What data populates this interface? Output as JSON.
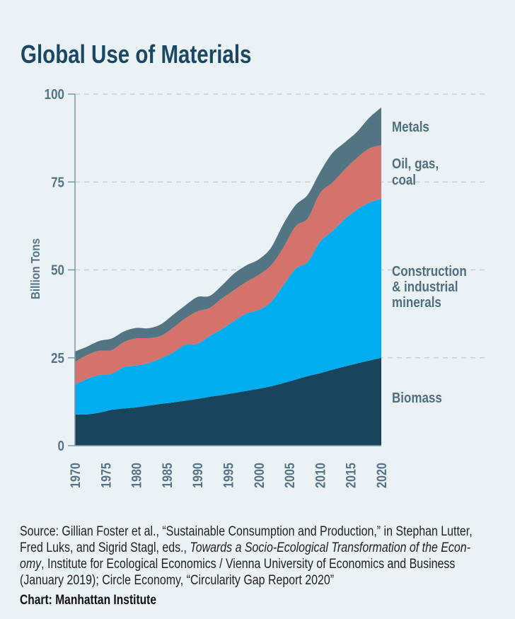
{
  "title": "Global Use of Materials",
  "chart_data": {
    "type": "area",
    "stacked": true,
    "title": "Global Use of Materials",
    "xlabel": "",
    "ylabel": "Billion Tons",
    "ylim": [
      0,
      100
    ],
    "xlim": [
      1970,
      2020
    ],
    "yticks": [
      "0",
      "25",
      "50",
      "75",
      "100"
    ],
    "xticks": [
      "1970",
      "1975",
      "1980",
      "1985",
      "1990",
      "1995",
      "2000",
      "2005",
      "2010",
      "2015",
      "2020"
    ],
    "grid": "horizontal dashed",
    "legend": "right, labels beside areas",
    "x": [
      1970,
      1972,
      1974,
      1976,
      1978,
      1980,
      1982,
      1984,
      1986,
      1988,
      1990,
      1992,
      1994,
      1996,
      1998,
      2000,
      2002,
      2004,
      2006,
      2008,
      2010,
      2012,
      2014,
      2016,
      2018,
      2020
    ],
    "series": [
      {
        "name": "Biomass",
        "label_lines": [
          "Biomass"
        ],
        "color": "#19455c",
        "values": [
          8.9,
          8.9,
          9.4,
          10.2,
          10.6,
          10.9,
          11.4,
          11.9,
          12.3,
          12.8,
          13.3,
          13.9,
          14.4,
          15.0,
          15.6,
          16.2,
          16.9,
          17.8,
          18.8,
          19.8,
          20.6,
          21.6,
          22.5,
          23.4,
          24.2,
          25.0
        ]
      },
      {
        "name": "Construction & industrial minerals",
        "label_lines": [
          "Construction",
          "& industrial",
          "minerals"
        ],
        "color": "#00aeef",
        "values": [
          8.5,
          10.1,
          10.7,
          10.3,
          11.7,
          11.9,
          12.1,
          12.9,
          14.2,
          15.9,
          15.7,
          17.3,
          18.8,
          20.5,
          22.0,
          22.4,
          24.0,
          27.8,
          31.5,
          32.5,
          37.4,
          39.4,
          41.9,
          43.7,
          44.9,
          45.3
        ]
      },
      {
        "name": "Oil, gas, coal",
        "label_lines": [
          "Oil, gas,",
          "coal"
        ],
        "color": "#d4736c",
        "values": [
          6.4,
          6.8,
          6.9,
          6.7,
          7.2,
          7.7,
          7.1,
          6.4,
          7.0,
          7.5,
          9.2,
          8.0,
          8.7,
          8.8,
          9.0,
          10.0,
          10.4,
          10.7,
          12.1,
          12.4,
          13.8,
          13.8,
          14.1,
          14.7,
          15.4,
          15.2
        ]
      },
      {
        "name": "Metals",
        "label_lines": [
          "Metals"
        ],
        "color": "#537482",
        "values": [
          3.0,
          2.4,
          2.8,
          3.3,
          3.0,
          3.0,
          2.8,
          3.3,
          3.7,
          3.7,
          4.1,
          3.4,
          3.7,
          4.7,
          4.7,
          4.4,
          5.0,
          6.7,
          6.0,
          6.7,
          6.0,
          8.4,
          7.7,
          7.4,
          8.7,
          10.7
        ]
      }
    ]
  },
  "source": {
    "line1": "Source: Gillian Foster et al., “Sustainable Consumption and Production,” in Stephan Lutter,",
    "line2_plain": "Fred Luks, and Sigrid Stagl, eds., ",
    "line2_italic": "Towards a Socio-Ecological Transformation of the Econ-",
    "line3_italic": "omy",
    "line3_plain": ", Institute for Ecological Economics / Vienna University of Economics and Business",
    "line4": "(January 2019); Circle Economy, “Circularity Gap Report 2020”"
  },
  "credit": "Chart: Manhattan Institute"
}
